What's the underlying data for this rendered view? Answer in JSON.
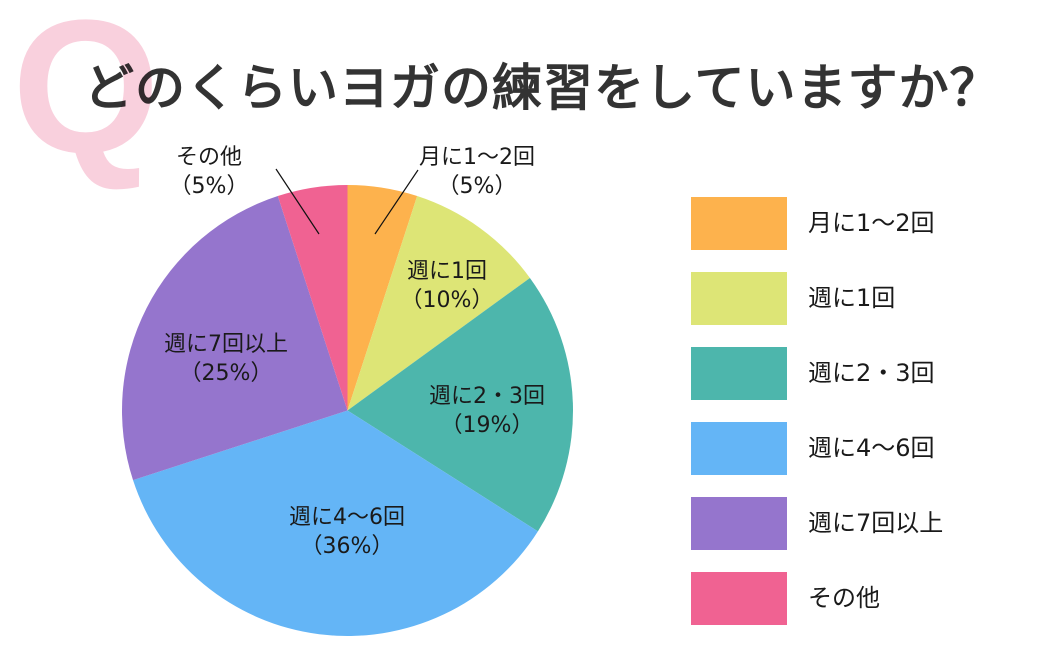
{
  "header": {
    "q_mark": "Q",
    "title": "どのくらいヨガの練習をしていますか？"
  },
  "chart_data": {
    "type": "pie",
    "title": "どのくらいヨガの練習をしていますか？",
    "categories": [
      "月に1〜2回",
      "週に1回",
      "週に2・3回",
      "週に4〜6回",
      "週に7回以上",
      "その他"
    ],
    "values": [
      5,
      10,
      19,
      36,
      25,
      5
    ],
    "unit": "%",
    "colors": [
      "#fdb24d",
      "#dde576",
      "#4db6ac",
      "#64b5f6",
      "#9575cd",
      "#f06292"
    ],
    "start_angle": "12 o'clock",
    "direction": "clockwise",
    "legend_position": "right"
  },
  "slice_labels": [
    {
      "name": "月に1〜2回",
      "pct": "（5%）"
    },
    {
      "name": "週に1回",
      "pct": "（10%）"
    },
    {
      "name": "週に2・3回",
      "pct": "（19%）"
    },
    {
      "name": "週に4〜6回",
      "pct": "（36%）"
    },
    {
      "name": "週に7回以上",
      "pct": "（25%）"
    },
    {
      "name": "その他",
      "pct": "（5%）"
    }
  ],
  "legend": {
    "items": [
      {
        "label": "月に1〜2回",
        "color": "#fdb24d"
      },
      {
        "label": "週に1回",
        "color": "#dde576"
      },
      {
        "label": "週に2・3回",
        "color": "#4db6ac"
      },
      {
        "label": "週に4〜6回",
        "color": "#64b5f6"
      },
      {
        "label": "週に7回以上",
        "color": "#9575cd"
      },
      {
        "label": "その他",
        "color": "#f06292"
      }
    ]
  }
}
